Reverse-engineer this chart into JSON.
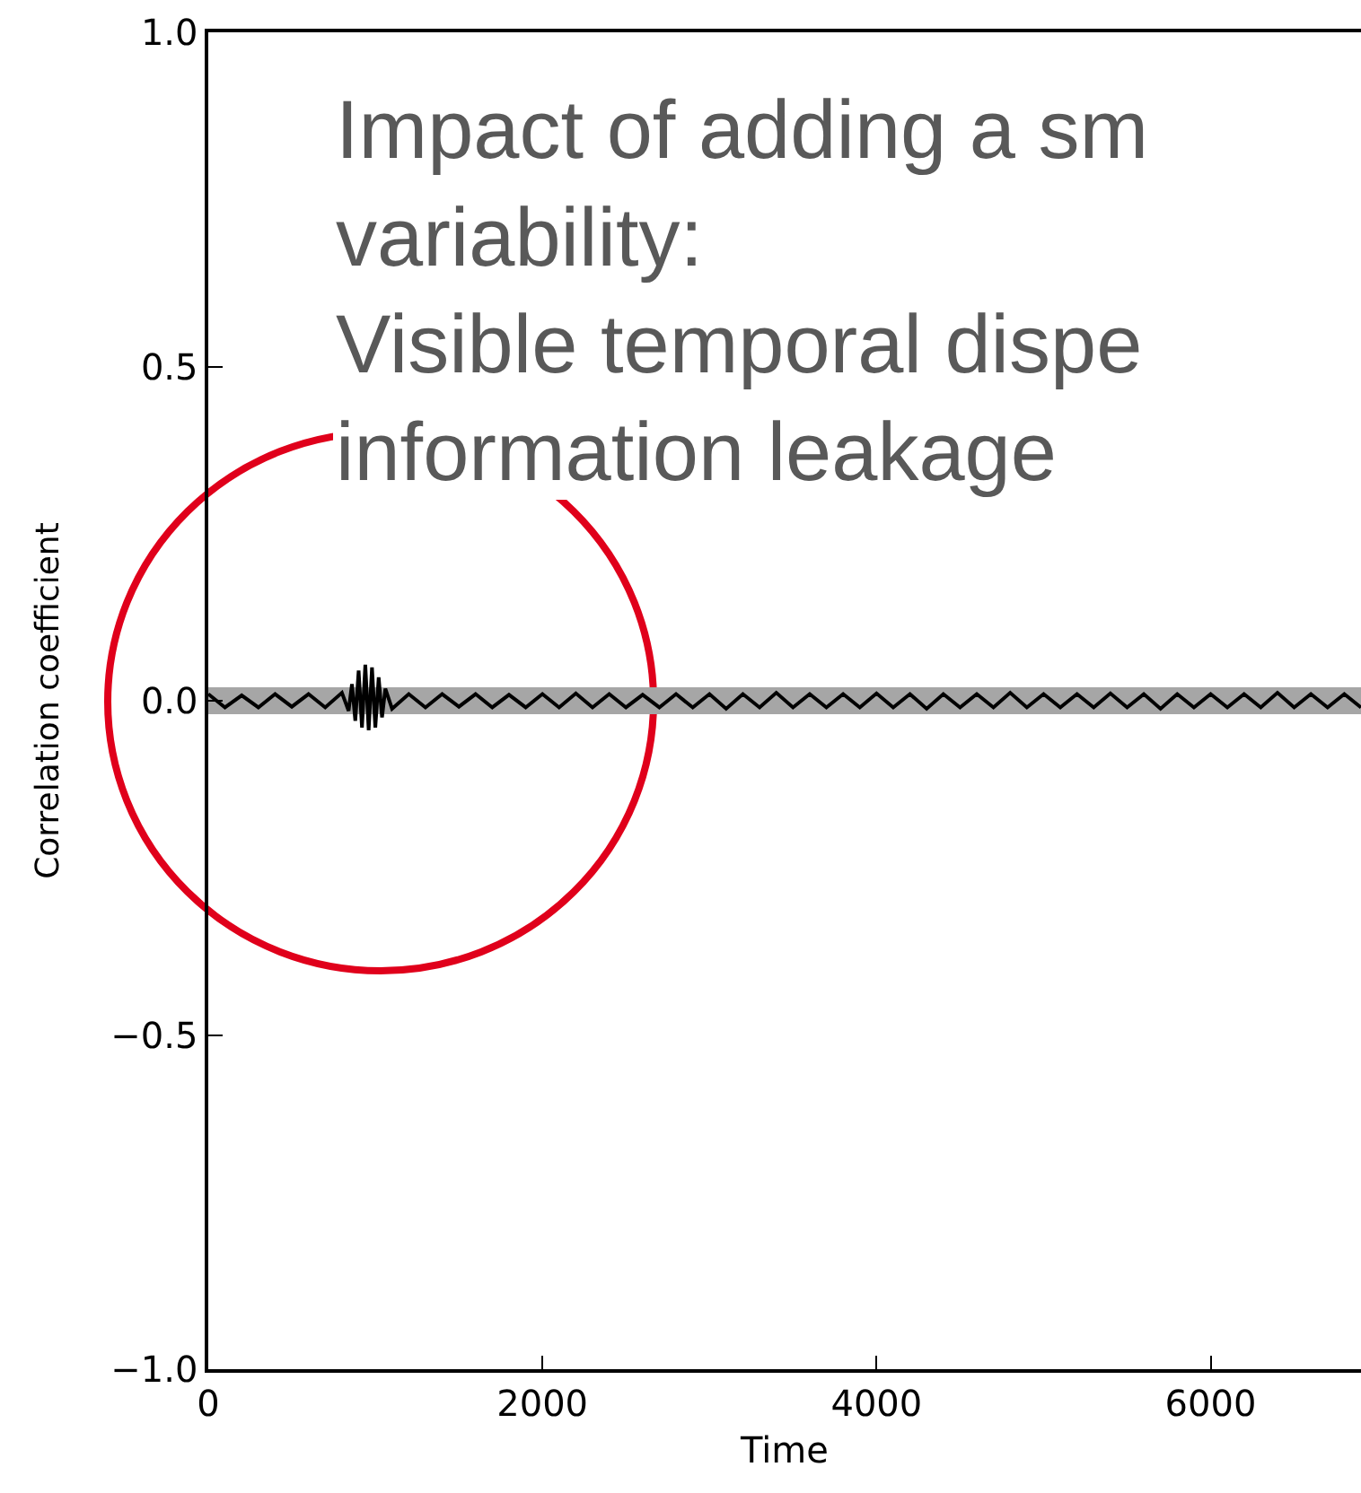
{
  "chart_data": {
    "type": "line",
    "xlabel": "Time",
    "ylabel": "Correlation coefficient",
    "annotations": [
      "Impact of adding a sm\nvariability:\nVisible temporal dispe\ninformation leakage"
    ],
    "x": [
      0,
      100,
      200,
      300,
      400,
      500,
      600,
      700,
      800,
      840,
      860,
      880,
      900,
      920,
      940,
      960,
      980,
      1000,
      1020,
      1040,
      1060,
      1100,
      1200,
      1300,
      1400,
      1500,
      1600,
      1700,
      1800,
      1900,
      2000,
      2100,
      2200,
      2300,
      2400,
      2500,
      2600,
      2700,
      2800,
      2900,
      3000,
      3100,
      3200,
      3300,
      3400,
      3500,
      3600,
      3700,
      3800,
      3900,
      4000,
      4100,
      4200,
      4300,
      4400,
      4500,
      4600,
      4700,
      4800,
      4900,
      5000,
      5100,
      5200,
      5300,
      5400,
      5500,
      5600,
      5700,
      5800,
      5900,
      6000,
      6100,
      6200,
      6300,
      6400,
      6500,
      6600,
      6700,
      6800,
      6900
    ],
    "series": [
      {
        "color": "#000000",
        "values": [
          0.01,
          -0.01,
          0.008,
          -0.01,
          0.01,
          -0.009,
          0.01,
          -0.01,
          0.012,
          -0.015,
          0.025,
          -0.03,
          0.045,
          -0.04,
          0.054,
          -0.044,
          0.05,
          -0.04,
          0.035,
          -0.025,
          0.018,
          -0.012,
          0.01,
          -0.01,
          0.01,
          -0.009,
          0.01,
          -0.01,
          0.009,
          -0.01,
          0.01,
          -0.01,
          0.011,
          -0.01,
          0.01,
          -0.01,
          0.009,
          -0.01,
          0.01,
          -0.01,
          0.01,
          -0.012,
          0.01,
          -0.01,
          0.012,
          -0.01,
          0.01,
          -0.01,
          0.01,
          -0.01,
          0.011,
          -0.01,
          0.01,
          -0.012,
          0.01,
          -0.01,
          0.01,
          -0.01,
          0.012,
          -0.01,
          0.01,
          -0.01,
          0.01,
          -0.01,
          0.011,
          -0.01,
          0.01,
          -0.012,
          0.01,
          -0.01,
          0.01,
          -0.01,
          0.01,
          -0.01,
          0.012,
          -0.01,
          0.01,
          -0.01,
          0.01,
          -0.01
        ],
        "lower": [
          -0.02,
          -0.02,
          -0.02,
          -0.02,
          -0.02,
          -0.02,
          -0.02,
          -0.02,
          -0.02,
          -0.02,
          -0.02,
          -0.02,
          -0.02,
          -0.02,
          -0.02,
          -0.02,
          -0.02,
          -0.02,
          -0.02,
          -0.02,
          -0.02,
          -0.02,
          -0.02,
          -0.02,
          -0.02,
          -0.02,
          -0.02,
          -0.02,
          -0.02,
          -0.02,
          -0.02,
          -0.02,
          -0.02,
          -0.02,
          -0.02,
          -0.02,
          -0.02,
          -0.02,
          -0.02,
          -0.02,
          -0.02,
          -0.02,
          -0.02,
          -0.02,
          -0.02,
          -0.02,
          -0.02,
          -0.02,
          -0.02,
          -0.02,
          -0.02,
          -0.02,
          -0.02,
          -0.02,
          -0.02,
          -0.02,
          -0.02,
          -0.02,
          -0.02,
          -0.02,
          -0.02,
          -0.02,
          -0.02,
          -0.02,
          -0.02,
          -0.02,
          -0.02,
          -0.02,
          -0.02,
          -0.02,
          -0.02,
          -0.02,
          -0.02,
          -0.02,
          -0.02,
          -0.02,
          -0.02,
          -0.02,
          -0.02,
          -0.02
        ],
        "upper": [
          0.02,
          0.02,
          0.02,
          0.02,
          0.02,
          0.02,
          0.02,
          0.02,
          0.02,
          0.02,
          0.02,
          0.02,
          0.02,
          0.02,
          0.02,
          0.02,
          0.02,
          0.02,
          0.02,
          0.02,
          0.02,
          0.02,
          0.02,
          0.02,
          0.02,
          0.02,
          0.02,
          0.02,
          0.02,
          0.02,
          0.02,
          0.02,
          0.02,
          0.02,
          0.02,
          0.02,
          0.02,
          0.02,
          0.02,
          0.02,
          0.02,
          0.02,
          0.02,
          0.02,
          0.02,
          0.02,
          0.02,
          0.02,
          0.02,
          0.02,
          0.02,
          0.02,
          0.02,
          0.02,
          0.02,
          0.02,
          0.02,
          0.02,
          0.02,
          0.02,
          0.02,
          0.02,
          0.02,
          0.02,
          0.02,
          0.02,
          0.02,
          0.02,
          0.02,
          0.02,
          0.02,
          0.02,
          0.02,
          0.02,
          0.02,
          0.02,
          0.02,
          0.02,
          0.02,
          0.02
        ]
      }
    ],
    "xlim": [
      0,
      6900
    ],
    "xticks": [
      0,
      2000,
      4000,
      6000
    ],
    "ylim": [
      -1,
      1
    ],
    "yticks": [
      {
        "value": -1,
        "label": "−1.0"
      },
      {
        "value": -0.5,
        "label": "−0.5"
      },
      {
        "value": 0,
        "label": "0.0"
      },
      0.5,
      {
        "value": 1,
        "label": "1.0"
      }
    ]
  }
}
